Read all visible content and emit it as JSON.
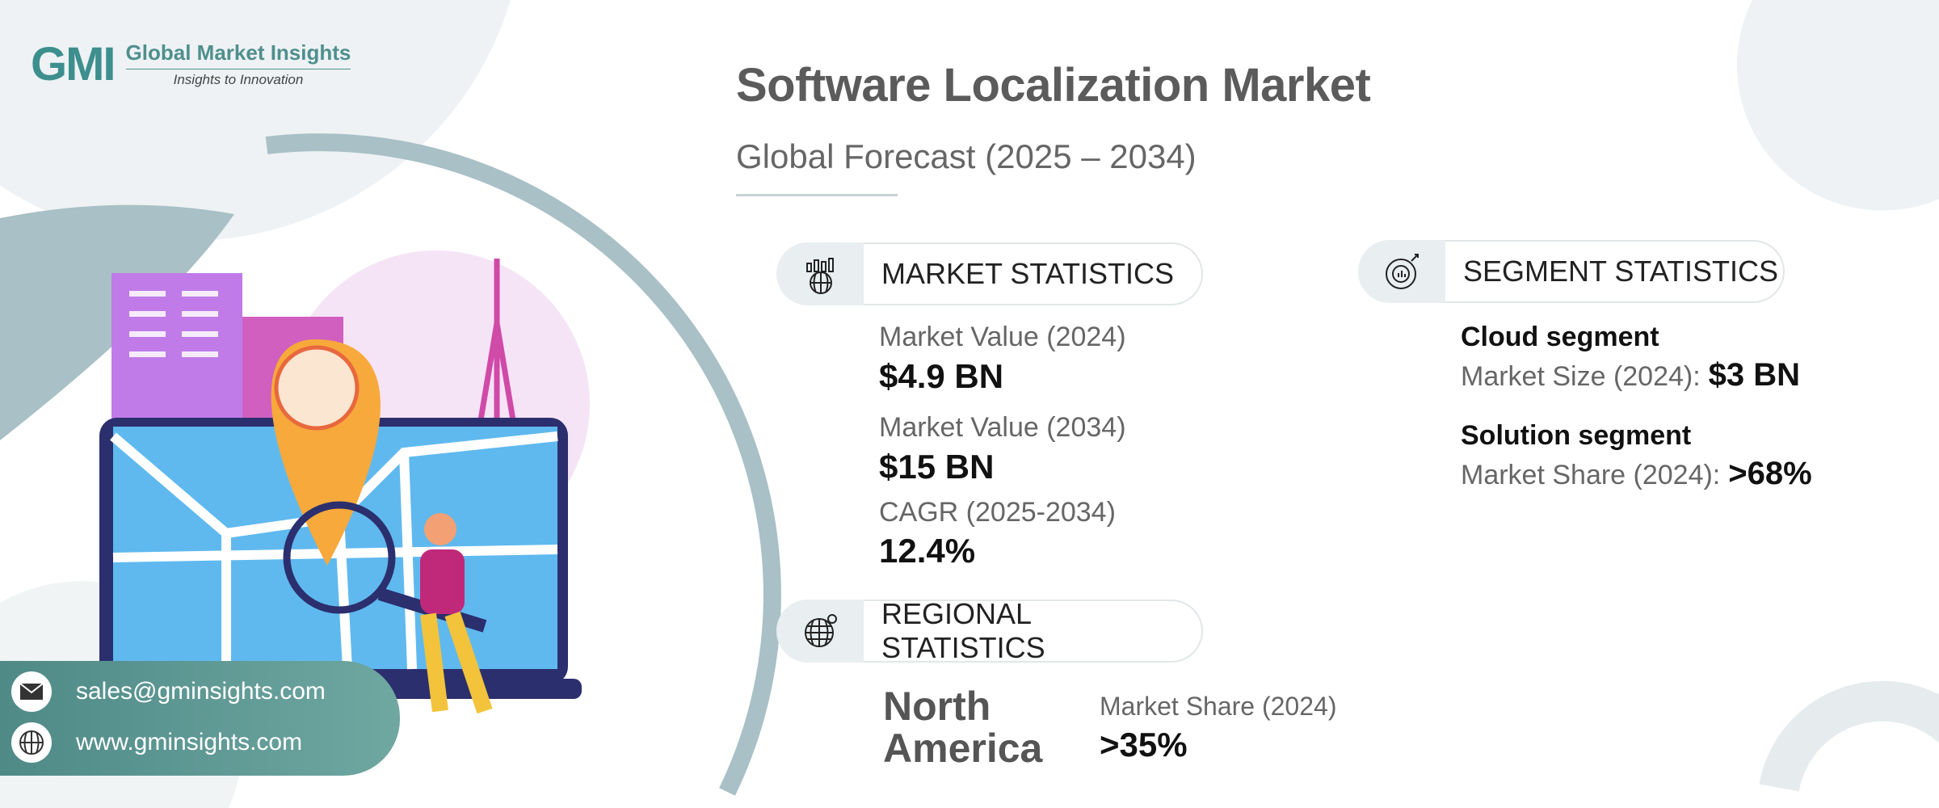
{
  "logo": {
    "brand": "GMI",
    "name": "Global Market Insights",
    "tagline": "Insights to Innovation"
  },
  "header": {
    "title": "Software Localization Market",
    "subtitle": "Global Forecast (2025 – 2034)"
  },
  "market_statistics": {
    "heading": "MARKET STATISTICS",
    "items": [
      {
        "label": "Market Value (2024)",
        "value": "$4.9 BN"
      },
      {
        "label": "Market Value (2034)",
        "value": "$15 BN"
      },
      {
        "label": "CAGR (2025-2034)",
        "value": "12.4%"
      }
    ]
  },
  "regional_statistics": {
    "heading": "REGIONAL STATISTICS",
    "region_line1": "North",
    "region_line2": "America",
    "label": "Market Share (2024)",
    "value": ">35%"
  },
  "segment_statistics": {
    "heading": "SEGMENT STATISTICS",
    "items": [
      {
        "name": "Cloud segment",
        "label": "Market Size (2024):",
        "value": "$3 BN"
      },
      {
        "name": "Solution segment",
        "label": "Market Share (2024):",
        "value": ">68%"
      }
    ]
  },
  "contact": {
    "email": "sales@gminsights.com",
    "website": "www.gminsights.com"
  }
}
